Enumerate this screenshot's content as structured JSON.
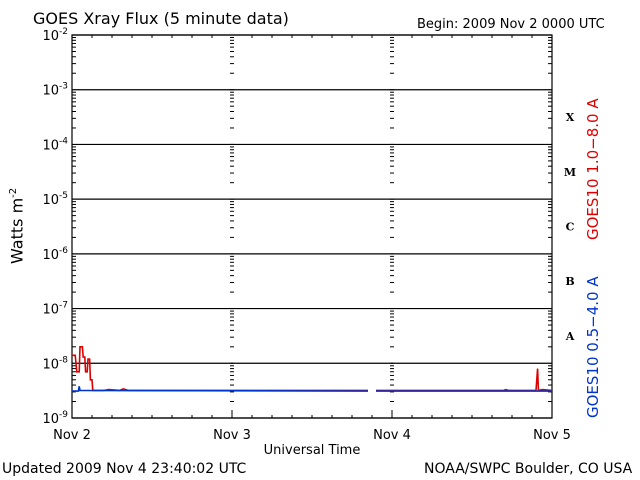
{
  "header": {
    "title": "GOES Xray Flux (5 minute data)",
    "begin": "Begin:  2009 Nov 2 0000 UTC"
  },
  "footer": {
    "updated": "Updated 2009 Nov  4 23:40:02 UTC",
    "credit": "NOAA/SWPC Boulder, CO USA"
  },
  "chart_data": {
    "type": "line",
    "xlabel": "Universal Time",
    "ylabel_base": "Watts m",
    "ylabel_exp": "-2",
    "ylim": [
      1e-09,
      0.01
    ],
    "yscale": "log",
    "xlim": [
      0,
      3
    ],
    "x_units": "days since 2009 Nov 2 0000 UTC",
    "x_ticks": [
      {
        "x": 0,
        "label": "Nov 2"
      },
      {
        "x": 1,
        "label": "Nov 3"
      },
      {
        "x": 2,
        "label": "Nov 4"
      },
      {
        "x": 3,
        "label": "Nov 5"
      }
    ],
    "y_ticks": [
      {
        "exp": -9,
        "base": "10",
        "sup": "-9"
      },
      {
        "exp": -8,
        "base": "10",
        "sup": "-8"
      },
      {
        "exp": -7,
        "base": "10",
        "sup": "-7"
      },
      {
        "exp": -6,
        "base": "10",
        "sup": "-6"
      },
      {
        "exp": -5,
        "base": "10",
        "sup": "-5"
      },
      {
        "exp": -4,
        "base": "10",
        "sup": "-4"
      },
      {
        "exp": -3,
        "base": "10",
        "sup": "-3"
      },
      {
        "exp": -2,
        "base": "10",
        "sup": "-2"
      }
    ],
    "flare_classes": [
      {
        "label": "A",
        "exp": -7.5
      },
      {
        "label": "B",
        "exp": -6.5
      },
      {
        "label": "C",
        "exp": -5.5
      },
      {
        "label": "M",
        "exp": -4.5
      },
      {
        "label": "X",
        "exp": -3.5
      }
    ],
    "grid_horizontal": true,
    "right_labels": [
      {
        "text": "GOES10 1.0−8.0 A",
        "color": "#dd0000"
      },
      {
        "text": "GOES10 0.5−4.0 A",
        "color": "#0033cc"
      }
    ],
    "series": [
      {
        "name": "GOES10 1.0−8.0 A",
        "color": "#dd0000",
        "segments": [
          [
            [
              0.0,
              1.4e-08
            ],
            [
              0.02,
              1.4e-08
            ],
            [
              0.03,
              7e-09
            ],
            [
              0.045,
              7e-09
            ],
            [
              0.05,
              2e-08
            ],
            [
              0.065,
              2e-08
            ],
            [
              0.07,
              1.3e-08
            ],
            [
              0.08,
              1.3e-08
            ],
            [
              0.085,
              7e-09
            ],
            [
              0.095,
              7e-09
            ],
            [
              0.1,
              1.2e-08
            ],
            [
              0.11,
              1.2e-08
            ],
            [
              0.115,
              5e-09
            ],
            [
              0.125,
              5e-09
            ],
            [
              0.13,
              3.2e-09
            ],
            [
              0.2,
              3.2e-09
            ],
            [
              0.23,
              3.3e-09
            ],
            [
              0.3,
              3.2e-09
            ],
            [
              0.32,
              3.4e-09
            ],
            [
              0.35,
              3.2e-09
            ],
            [
              1.85,
              3.2e-09
            ]
          ],
          [
            [
              1.9,
              3.2e-09
            ],
            [
              2.7,
              3.2e-09
            ],
            [
              2.71,
              3.3e-09
            ],
            [
              2.73,
              3.2e-09
            ],
            [
              2.9,
              3.2e-09
            ],
            [
              2.91,
              8e-09
            ],
            [
              2.915,
              3.2e-09
            ],
            [
              2.94,
              3.3e-09
            ],
            [
              3.0,
              3.2e-09
            ]
          ]
        ]
      },
      {
        "name": "GOES10 0.5−4.0 A",
        "color": "#0033cc",
        "segments": [
          [
            [
              0.0,
              3.1e-09
            ],
            [
              0.04,
              3.1e-09
            ],
            [
              0.045,
              3.8e-09
            ],
            [
              0.05,
              3.2e-09
            ],
            [
              1.85,
              3.1e-09
            ]
          ],
          [
            [
              1.9,
              3.1e-09
            ],
            [
              3.0,
              3.1e-09
            ]
          ]
        ]
      }
    ]
  }
}
